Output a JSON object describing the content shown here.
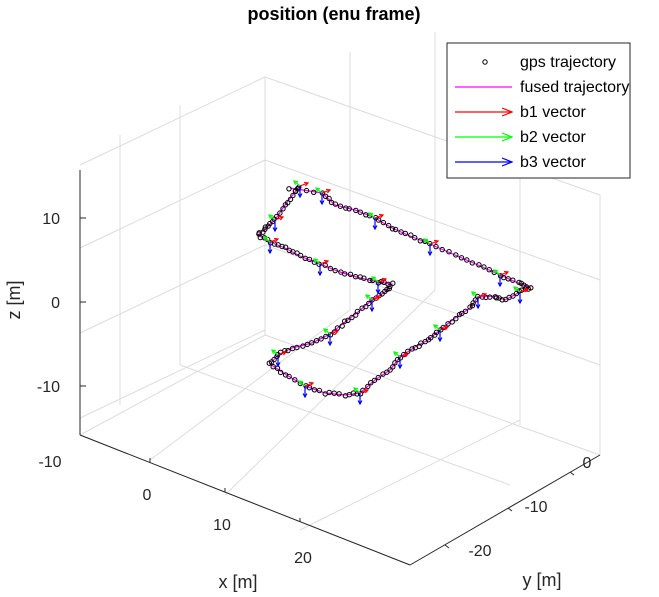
{
  "chart_data": {
    "type": "line3d",
    "title": "position (enu frame)",
    "xlabel": "x [m]",
    "ylabel": "y [m]",
    "zlabel": "z [m]",
    "x_ticks": [
      "-10",
      "0",
      "10",
      "20"
    ],
    "y_ticks": [
      "0",
      "-10",
      "-20"
    ],
    "z_ticks": [
      "10",
      "0",
      "-10"
    ],
    "grid": true,
    "legend_position": "top-right",
    "legend": [
      {
        "label": "gps trajectory",
        "marker": "circle",
        "color": "#000000"
      },
      {
        "label": "fused trajectory",
        "marker": "line",
        "color": "#ff00ff"
      },
      {
        "label": "b1 vector",
        "marker": "arrow",
        "color": "#ff0000"
      },
      {
        "label": "b2 vector",
        "marker": "arrow",
        "color": "#00ff00"
      },
      {
        "label": "b3 vector",
        "marker": "arrow",
        "color": "#0000ff"
      }
    ]
  }
}
